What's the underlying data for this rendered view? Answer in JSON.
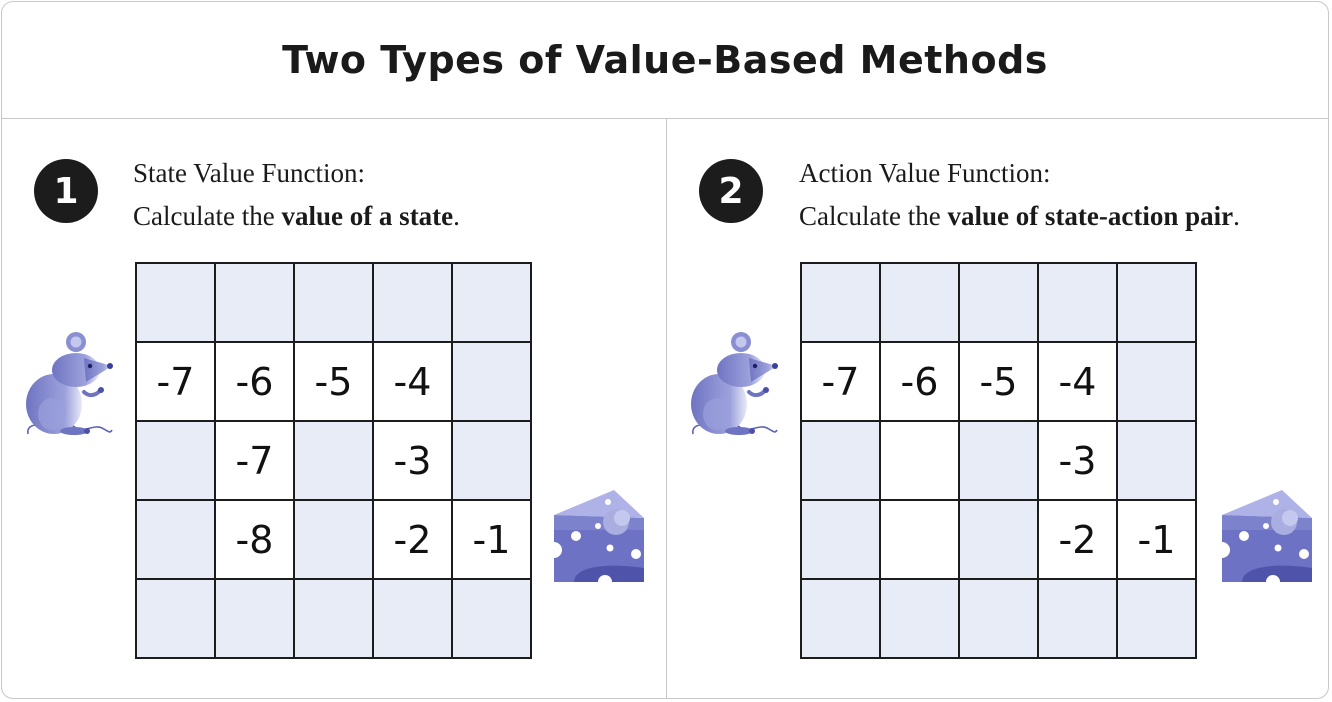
{
  "title": "Two Types of Value-Based Methods",
  "panels": [
    {
      "number": "1",
      "line1": "State Value Function:",
      "line2_prefix": "Calculate the ",
      "line2_bold": "value of a state",
      "line2_suffix": ".",
      "grid": [
        [
          {
            "v": "",
            "p": false
          },
          {
            "v": "",
            "p": false
          },
          {
            "v": "",
            "p": false
          },
          {
            "v": "",
            "p": false
          },
          {
            "v": "",
            "p": false
          }
        ],
        [
          {
            "v": "-7",
            "p": true
          },
          {
            "v": "-6",
            "p": true
          },
          {
            "v": "-5",
            "p": true
          },
          {
            "v": "-4",
            "p": true
          },
          {
            "v": "",
            "p": false
          }
        ],
        [
          {
            "v": "",
            "p": false
          },
          {
            "v": "-7",
            "p": true
          },
          {
            "v": "",
            "p": false
          },
          {
            "v": "-3",
            "p": true
          },
          {
            "v": "",
            "p": false
          }
        ],
        [
          {
            "v": "",
            "p": false
          },
          {
            "v": "-8",
            "p": true
          },
          {
            "v": "",
            "p": false
          },
          {
            "v": "-2",
            "p": true
          },
          {
            "v": "-1",
            "p": true
          }
        ],
        [
          {
            "v": "",
            "p": false
          },
          {
            "v": "",
            "p": false
          },
          {
            "v": "",
            "p": false
          },
          {
            "v": "",
            "p": false
          },
          {
            "v": "",
            "p": false
          }
        ]
      ]
    },
    {
      "number": "2",
      "line1": "Action Value Function:",
      "line2_prefix": "Calculate the ",
      "line2_bold": "value of state-action pair",
      "line2_suffix": ".",
      "grid": [
        [
          {
            "v": "",
            "p": false
          },
          {
            "v": "",
            "p": false
          },
          {
            "v": "",
            "p": false
          },
          {
            "v": "",
            "p": false
          },
          {
            "v": "",
            "p": false
          }
        ],
        [
          {
            "v": "-7",
            "p": true
          },
          {
            "v": "-6",
            "p": true
          },
          {
            "v": "-5",
            "p": true
          },
          {
            "v": "-4",
            "p": true
          },
          {
            "v": "",
            "p": false
          }
        ],
        [
          {
            "v": "",
            "p": false
          },
          {
            "v": "",
            "p": true
          },
          {
            "v": "",
            "p": false
          },
          {
            "v": "-3",
            "p": true
          },
          {
            "v": "",
            "p": false
          }
        ],
        [
          {
            "v": "",
            "p": false
          },
          {
            "v": "",
            "p": true
          },
          {
            "v": "",
            "p": false
          },
          {
            "v": "-2",
            "p": true
          },
          {
            "v": "-1",
            "p": true
          }
        ],
        [
          {
            "v": "",
            "p": false
          },
          {
            "v": "",
            "p": false
          },
          {
            "v": "",
            "p": false
          },
          {
            "v": "",
            "p": false
          },
          {
            "v": "",
            "p": false
          }
        ]
      ]
    }
  ],
  "icons": {
    "agent": "mouse-icon",
    "goal": "cheese-icon"
  },
  "colors": {
    "wall_cell": "#e8ecf6",
    "path_cell": "#ffffff",
    "illustration": "#7b80c8",
    "badge": "#1c1c1c"
  }
}
